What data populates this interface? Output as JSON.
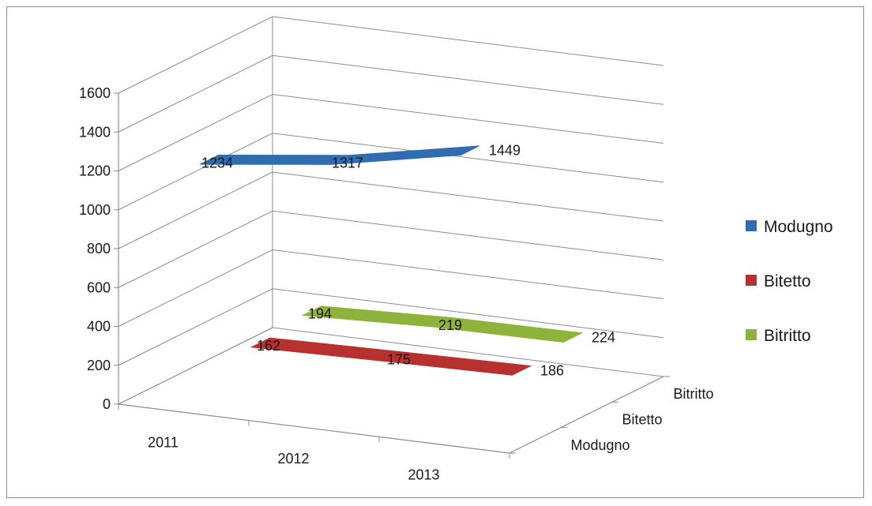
{
  "chart_data": {
    "type": "line",
    "style": "3d",
    "categories": [
      "2011",
      "2012",
      "2013"
    ],
    "depth_labels": [
      "Modugno",
      "Bitetto",
      "Bitritto"
    ],
    "y_ticks": [
      "0",
      "200",
      "400",
      "600",
      "800",
      "1000",
      "1200",
      "1400",
      "1600"
    ],
    "ylim": [
      0,
      1600
    ],
    "series": [
      {
        "name": "Modugno",
        "values": [
          1234,
          1317,
          1449
        ],
        "color": "#2f6db0"
      },
      {
        "name": "Bitetto",
        "values": [
          162,
          175,
          186
        ],
        "color": "#b7312f"
      },
      {
        "name": "Bitritto",
        "values": [
          194,
          219,
          224
        ],
        "color": "#8db33c"
      }
    ],
    "data_labels": [
      [
        "1234",
        "1317",
        "1449"
      ],
      [
        "162",
        "175",
        "186"
      ],
      [
        "194",
        "219",
        "224"
      ]
    ],
    "legend_position": "right",
    "gridlines": true
  }
}
